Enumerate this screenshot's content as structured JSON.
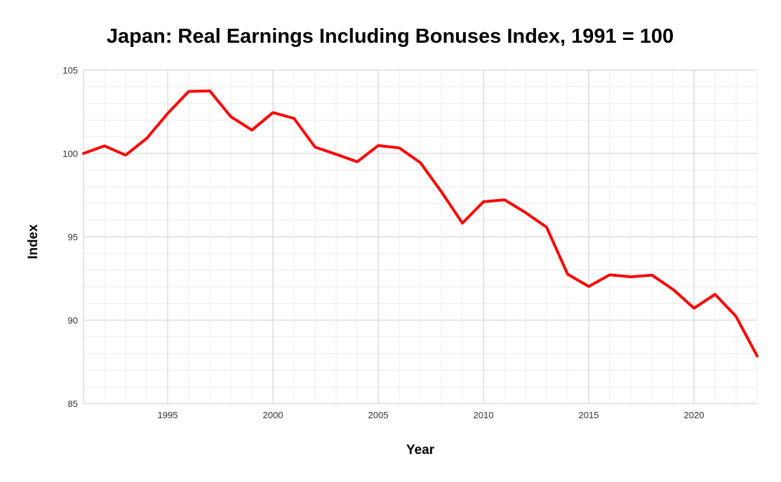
{
  "chart_data": {
    "type": "line",
    "title": "Japan: Real Earnings Including Bonuses Index, 1991 = 100",
    "xlabel": "Year",
    "ylabel": "Index",
    "xlim": [
      1991,
      2023
    ],
    "ylim": [
      85,
      105
    ],
    "x_ticks": [
      1995,
      2000,
      2005,
      2010,
      2015,
      2020
    ],
    "y_ticks": [
      85,
      90,
      95,
      100,
      105
    ],
    "grid": true,
    "legend": "none",
    "series": [
      {
        "color": "#ff0000",
        "x": [
          1991,
          1992,
          1993,
          1994,
          1995,
          1996,
          1997,
          1998,
          1999,
          2000,
          2001,
          2002,
          2003,
          2004,
          2005,
          2006,
          2007,
          2008,
          2009,
          2010,
          2011,
          2012,
          2013,
          2014,
          2015,
          2016,
          2017,
          2018,
          2019,
          2020,
          2021,
          2022,
          2023
        ],
        "values": [
          100.0,
          100.45,
          99.9,
          100.9,
          102.4,
          103.72,
          103.75,
          102.2,
          101.4,
          102.45,
          102.1,
          100.38,
          99.95,
          99.5,
          100.47,
          100.33,
          99.45,
          97.7,
          95.82,
          97.1,
          97.22,
          96.45,
          95.57,
          92.75,
          92.02,
          92.72,
          92.6,
          92.7,
          91.85,
          90.72,
          91.55,
          90.22,
          87.85
        ]
      }
    ]
  }
}
